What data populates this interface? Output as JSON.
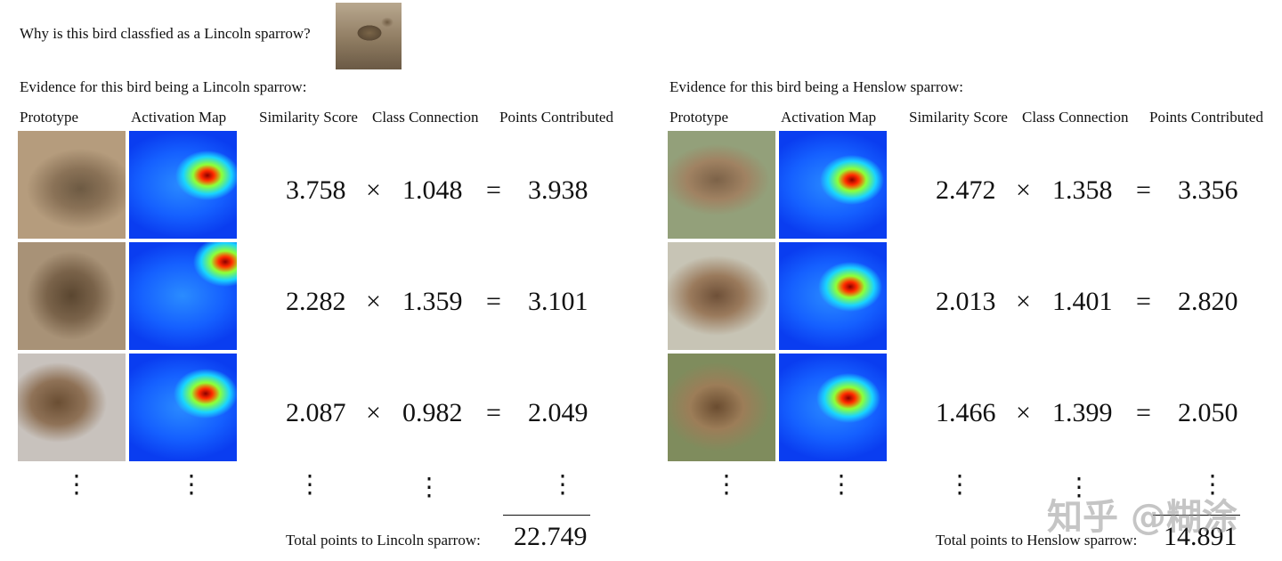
{
  "question": "Why is this bird classfied as a Lincoln sparrow?",
  "column_headers": {
    "prototype": "Prototype",
    "activation_map": "Activation Map",
    "similarity": "Similarity Score",
    "connection": "Class Connection",
    "points": "Points Contributed"
  },
  "operators": {
    "times": "×",
    "equals": "=",
    "vdots": "⋮"
  },
  "panels": [
    {
      "heading": "Evidence for this bird being a Lincoln sparrow:",
      "rows": [
        {
          "similarity": "3.758",
          "connection": "1.048",
          "points": "3.938"
        },
        {
          "similarity": "2.282",
          "connection": "1.359",
          "points": "3.101"
        },
        {
          "similarity": "2.087",
          "connection": "0.982",
          "points": "2.049"
        }
      ],
      "total_label": "Total points to Lincoln sparrow:",
      "total_value": "22.749"
    },
    {
      "heading": "Evidence for this bird being a Henslow sparrow:",
      "rows": [
        {
          "similarity": "2.472",
          "connection": "1.358",
          "points": "3.356"
        },
        {
          "similarity": "2.013",
          "connection": "1.401",
          "points": "2.820"
        },
        {
          "similarity": "1.466",
          "connection": "1.399",
          "points": "2.050"
        }
      ],
      "total_label": "Total points to Henslow sparrow:",
      "total_value": "14.891"
    }
  ],
  "watermark": "知乎 @糊涂"
}
